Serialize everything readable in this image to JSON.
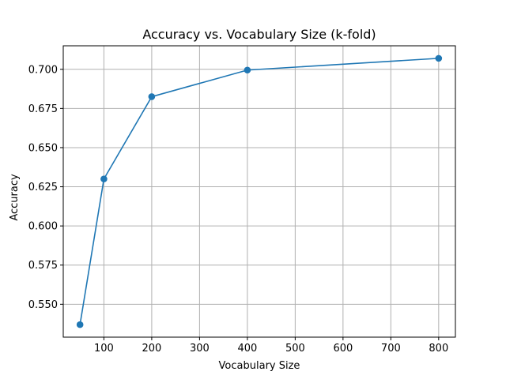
{
  "chart_data": {
    "type": "line",
    "title": "Accuracy vs. Vocabulary Size (k-fold)",
    "xlabel": "Vocabulary Size",
    "ylabel": "Accuracy",
    "x": [
      50,
      100,
      200,
      400,
      800
    ],
    "series": [
      {
        "values": [
          0.537,
          0.63,
          0.6825,
          0.6995,
          0.707
        ]
      }
    ],
    "xlim": [
      15,
      835
    ],
    "ylim": [
      0.529,
      0.715
    ],
    "xticks": [
      100,
      200,
      300,
      400,
      500,
      600,
      700,
      800
    ],
    "xtick_labels": [
      "100",
      "200",
      "300",
      "400",
      "500",
      "600",
      "700",
      "800"
    ],
    "yticks": [
      0.55,
      0.575,
      0.6,
      0.625,
      0.65,
      0.675,
      0.7
    ],
    "ytick_labels": [
      "0.550",
      "0.575",
      "0.600",
      "0.625",
      "0.650",
      "0.675",
      "0.700"
    ],
    "grid": true,
    "line_color": "#1f77b4",
    "marker": "circle"
  }
}
